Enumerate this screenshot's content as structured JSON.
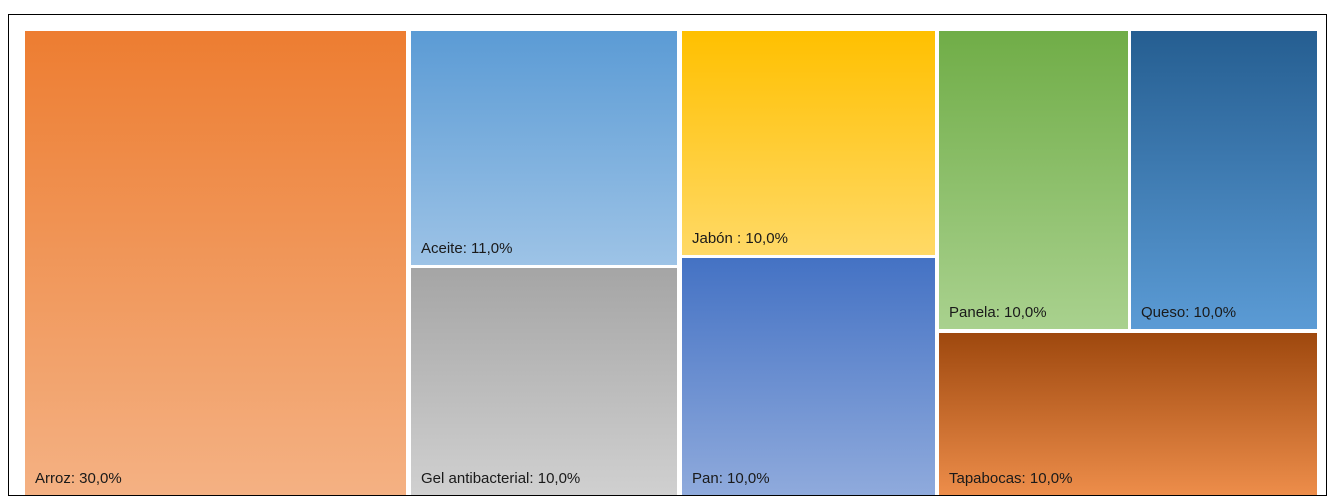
{
  "chart_data": {
    "type": "treemap",
    "title": "",
    "items": [
      {
        "name": "Arroz",
        "label": "Arroz: 30,0%",
        "value": 30.0,
        "color_top": "#ed7d31",
        "color_bottom": "#f4b183"
      },
      {
        "name": "Aceite",
        "label": "Aceite: 11,0%",
        "value": 11.0,
        "color_top": "#5b9bd5",
        "color_bottom": "#9dc3e6"
      },
      {
        "name": "Gel antibacterial",
        "label": "Gel antibacterial: 10,0%",
        "value": 10.0,
        "color_top": "#a5a5a5",
        "color_bottom": "#d0d0d0"
      },
      {
        "name": "Jabón",
        "label": "Jabón : 10,0%",
        "value": 10.0,
        "color_top": "#ffc000",
        "color_bottom": "#ffd966"
      },
      {
        "name": "Pan",
        "label": "Pan: 10,0%",
        "value": 10.0,
        "color_top": "#4472c4",
        "color_bottom": "#8faadc"
      },
      {
        "name": "Panela",
        "label": "Panela: 10,0%",
        "value": 10.0,
        "color_top": "#70ad47",
        "color_bottom": "#a9d18e"
      },
      {
        "name": "Queso",
        "label": "Queso: 10,0%",
        "value": 10.0,
        "color_top": "#255e91",
        "color_bottom": "#5b9bd5"
      },
      {
        "name": "Tapabocas",
        "label": "Tapabocas: 10,0%",
        "value": 10.0,
        "color_top": "#9e480e",
        "color_bottom": "#ed8d4a"
      }
    ]
  }
}
